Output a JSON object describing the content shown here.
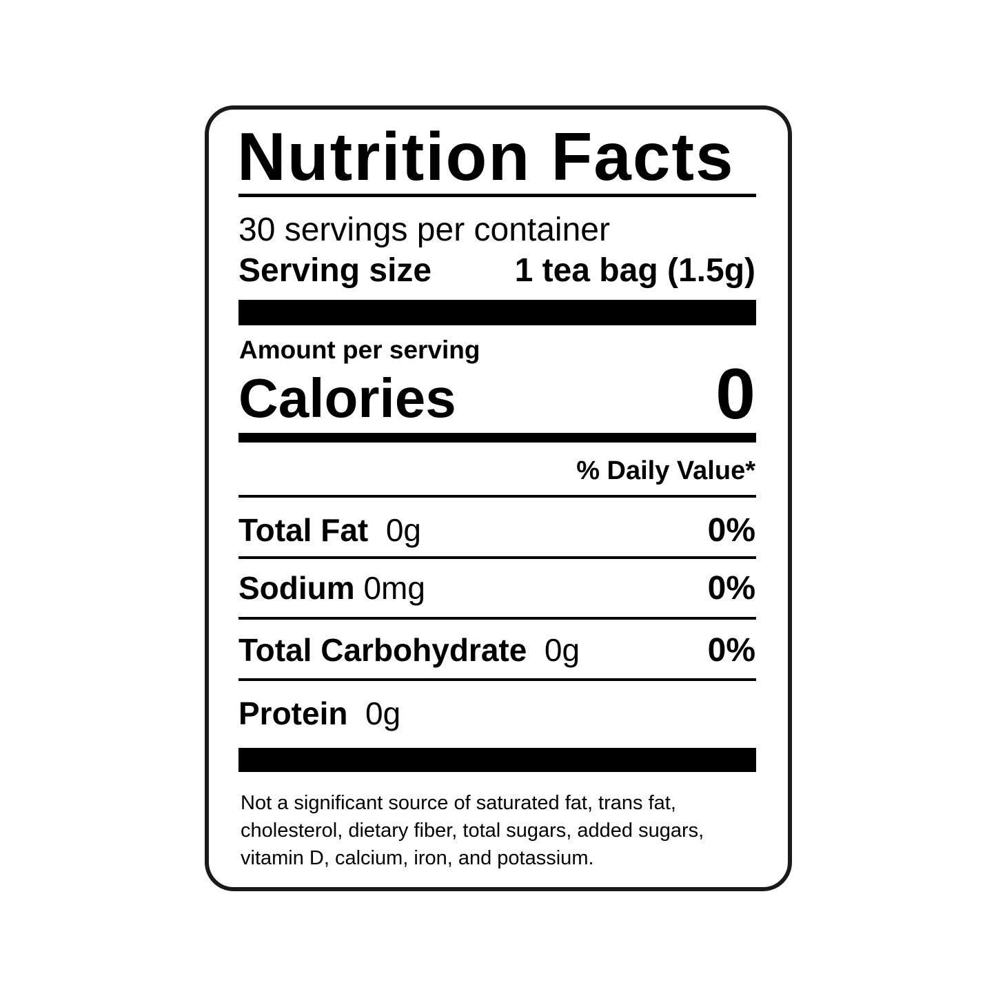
{
  "title": "Nutrition Facts",
  "servings_per_container": "30 servings per container",
  "serving_size": {
    "label": "Serving size",
    "value": "1 tea bag (1.5g)"
  },
  "amount_per_serving": "Amount per serving",
  "calories": {
    "label": "Calories",
    "value": "0"
  },
  "daily_value_header": "% Daily Value*",
  "nutrients": [
    {
      "name": "Total Fat",
      "amount": "0g",
      "dv": "0%"
    },
    {
      "name": "Sodium",
      "amount": "0mg",
      "dv": "0%"
    },
    {
      "name": "Total Carbohydrate",
      "amount": "0g",
      "dv": "0%"
    },
    {
      "name": "Protein",
      "amount": "0g"
    }
  ],
  "footnote": [
    "Not a significant source of saturated fat, trans fat,",
    "cholesterol, dietary fiber, total sugars, added sugars,",
    "vitamin D, calcium, iron, and potassium."
  ]
}
